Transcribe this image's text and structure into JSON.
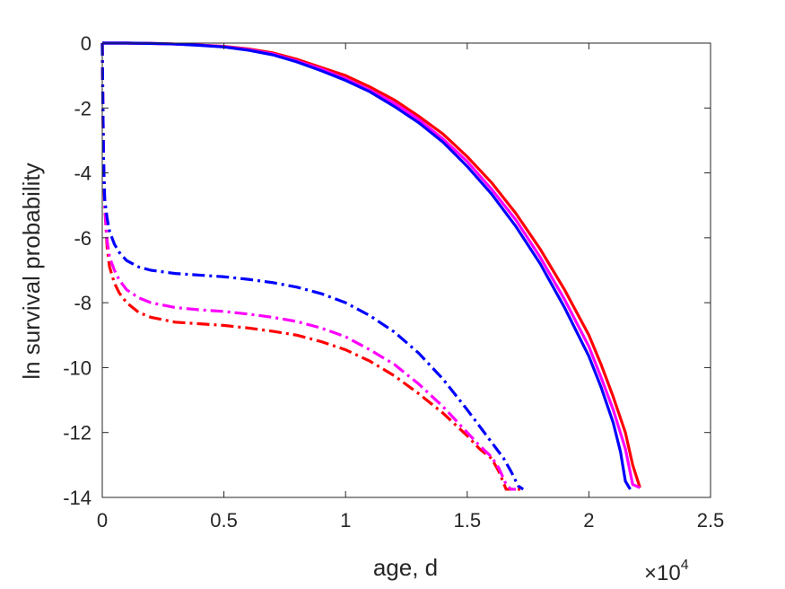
{
  "chart_data": {
    "type": "line",
    "title": "",
    "xlabel": "age, d",
    "ylabel": "ln survival probability",
    "x_exponent_label": "×10",
    "x_exponent_power": "4",
    "xlim": [
      0,
      2.5
    ],
    "ylim": [
      -14,
      0
    ],
    "xticks": [
      0,
      0.5,
      1,
      1.5,
      2,
      2.5
    ],
    "xtick_labels": [
      "0",
      "0.5",
      "1",
      "1.5",
      "2",
      "2.5"
    ],
    "yticks": [
      0,
      -2,
      -4,
      -6,
      -8,
      -10,
      -12,
      -14
    ],
    "ytick_labels": [
      "0",
      "-2",
      "-4",
      "-6",
      "-8",
      "-10",
      "-12",
      "-14"
    ],
    "grid": false,
    "legend": "none",
    "series": [
      {
        "color": "#ff0000",
        "style": "solid",
        "x": [
          0,
          0.1,
          0.2,
          0.3,
          0.4,
          0.5,
          0.6,
          0.7,
          0.8,
          0.9,
          1.0,
          1.1,
          1.2,
          1.3,
          1.4,
          1.5,
          1.6,
          1.7,
          1.8,
          1.9,
          2.0,
          2.05,
          2.1,
          2.15,
          2.18,
          2.21
        ],
        "y": [
          0,
          0,
          -0.01,
          -0.03,
          -0.06,
          -0.1,
          -0.18,
          -0.3,
          -0.5,
          -0.75,
          -1.0,
          -1.35,
          -1.75,
          -2.25,
          -2.8,
          -3.5,
          -4.3,
          -5.25,
          -6.35,
          -7.6,
          -9.0,
          -9.9,
          -10.9,
          -12.0,
          -13.0,
          -13.7
        ]
      },
      {
        "color": "#ff00ff",
        "style": "solid",
        "x": [
          0,
          0.1,
          0.2,
          0.3,
          0.4,
          0.5,
          0.6,
          0.7,
          0.8,
          0.9,
          1.0,
          1.1,
          1.2,
          1.3,
          1.4,
          1.5,
          1.6,
          1.7,
          1.8,
          1.9,
          2.0,
          2.05,
          2.1,
          2.15,
          2.18,
          2.21
        ],
        "y": [
          0,
          0,
          -0.01,
          -0.03,
          -0.06,
          -0.11,
          -0.2,
          -0.33,
          -0.55,
          -0.8,
          -1.1,
          -1.45,
          -1.85,
          -2.35,
          -2.95,
          -3.65,
          -4.5,
          -5.45,
          -6.6,
          -7.9,
          -9.35,
          -10.3,
          -11.3,
          -12.5,
          -13.6,
          -13.7
        ]
      },
      {
        "color": "#0000ff",
        "style": "solid",
        "x": [
          0,
          0.1,
          0.2,
          0.3,
          0.4,
          0.5,
          0.6,
          0.7,
          0.8,
          0.9,
          1.0,
          1.1,
          1.2,
          1.3,
          1.4,
          1.5,
          1.6,
          1.7,
          1.8,
          1.9,
          2.0,
          2.05,
          2.1,
          2.13,
          2.15,
          2.17
        ],
        "y": [
          0,
          0,
          -0.01,
          -0.03,
          -0.07,
          -0.12,
          -0.22,
          -0.36,
          -0.58,
          -0.85,
          -1.15,
          -1.5,
          -1.95,
          -2.45,
          -3.05,
          -3.8,
          -4.65,
          -5.65,
          -6.8,
          -8.15,
          -9.65,
          -10.6,
          -11.7,
          -12.6,
          -13.5,
          -13.75
        ]
      },
      {
        "color": "#ff0000",
        "style": "dashdot",
        "x": [
          0,
          0.002,
          0.005,
          0.01,
          0.02,
          0.03,
          0.05,
          0.07,
          0.1,
          0.15,
          0.2,
          0.3,
          0.4,
          0.5,
          0.6,
          0.7,
          0.8,
          0.9,
          1.0,
          1.1,
          1.2,
          1.3,
          1.4,
          1.5,
          1.55,
          1.6,
          1.63,
          1.66,
          1.7,
          1.72
        ],
        "y": [
          0,
          -1.5,
          -3.5,
          -5.0,
          -6.3,
          -6.9,
          -7.4,
          -7.7,
          -8.0,
          -8.3,
          -8.45,
          -8.6,
          -8.65,
          -8.7,
          -8.78,
          -8.88,
          -9.0,
          -9.2,
          -9.45,
          -9.8,
          -10.25,
          -10.8,
          -11.4,
          -12.1,
          -12.5,
          -12.8,
          -13.2,
          -13.75,
          -13.75,
          -13.75
        ]
      },
      {
        "color": "#ff00ff",
        "style": "dashdot",
        "x": [
          0,
          0.002,
          0.005,
          0.01,
          0.02,
          0.03,
          0.05,
          0.07,
          0.1,
          0.15,
          0.2,
          0.3,
          0.4,
          0.5,
          0.6,
          0.7,
          0.8,
          0.9,
          1.0,
          1.1,
          1.2,
          1.3,
          1.4,
          1.5,
          1.55,
          1.6,
          1.63,
          1.66,
          1.68,
          1.7
        ],
        "y": [
          0,
          -1.5,
          -3.5,
          -5.0,
          -6.1,
          -6.6,
          -7.0,
          -7.3,
          -7.6,
          -7.85,
          -8.0,
          -8.15,
          -8.22,
          -8.27,
          -8.35,
          -8.45,
          -8.58,
          -8.78,
          -9.05,
          -9.45,
          -9.9,
          -10.5,
          -11.2,
          -12.0,
          -12.4,
          -12.75,
          -13.1,
          -13.6,
          -13.75,
          -13.75
        ]
      },
      {
        "color": "#0000ff",
        "style": "dashdot",
        "x": [
          0,
          0.002,
          0.005,
          0.01,
          0.02,
          0.03,
          0.05,
          0.07,
          0.1,
          0.15,
          0.2,
          0.3,
          0.4,
          0.5,
          0.6,
          0.7,
          0.8,
          0.9,
          1.0,
          1.1,
          1.2,
          1.3,
          1.4,
          1.5,
          1.55,
          1.6,
          1.65,
          1.68,
          1.71,
          1.73
        ],
        "y": [
          0,
          -1.5,
          -3.5,
          -4.8,
          -5.4,
          -5.8,
          -6.2,
          -6.45,
          -6.7,
          -6.9,
          -7.0,
          -7.1,
          -7.15,
          -7.2,
          -7.28,
          -7.38,
          -7.52,
          -7.72,
          -8.0,
          -8.4,
          -8.9,
          -9.55,
          -10.35,
          -11.3,
          -11.8,
          -12.3,
          -12.8,
          -13.2,
          -13.65,
          -13.75
        ]
      }
    ]
  }
}
